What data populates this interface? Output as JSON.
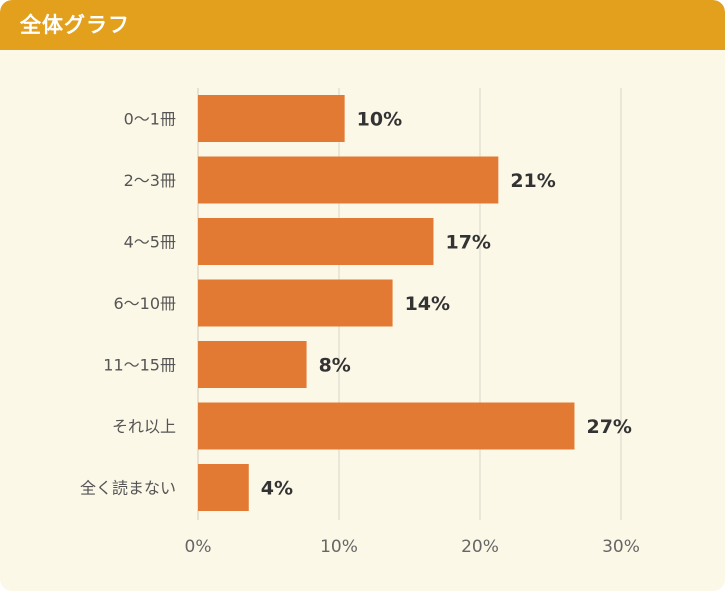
{
  "header": {
    "title": "全体グラフ"
  },
  "colors": {
    "header": "#e3a01c",
    "background": "#fcf8e8",
    "bar": "#e27a33",
    "grid": "#d9d5c8",
    "label": "#555555",
    "value": "#333333"
  },
  "chart_data": {
    "type": "bar",
    "orientation": "horizontal",
    "title": "全体グラフ",
    "categories": [
      "0〜1冊",
      "2〜3冊",
      "4〜5冊",
      "6〜10冊",
      "11〜15冊",
      "それ以上",
      "全く読まない"
    ],
    "values": [
      10.4,
      21.3,
      16.7,
      13.8,
      7.7,
      26.7,
      3.6
    ],
    "value_labels": [
      "10%",
      "21%",
      "17%",
      "14%",
      "8%",
      "27%",
      "4%"
    ],
    "xlim": [
      0,
      30
    ],
    "xticks": [
      0,
      10,
      20,
      30
    ],
    "xtick_labels": [
      "0%",
      "10%",
      "20%",
      "30%"
    ],
    "grid": true,
    "xlabel": "",
    "ylabel": ""
  }
}
